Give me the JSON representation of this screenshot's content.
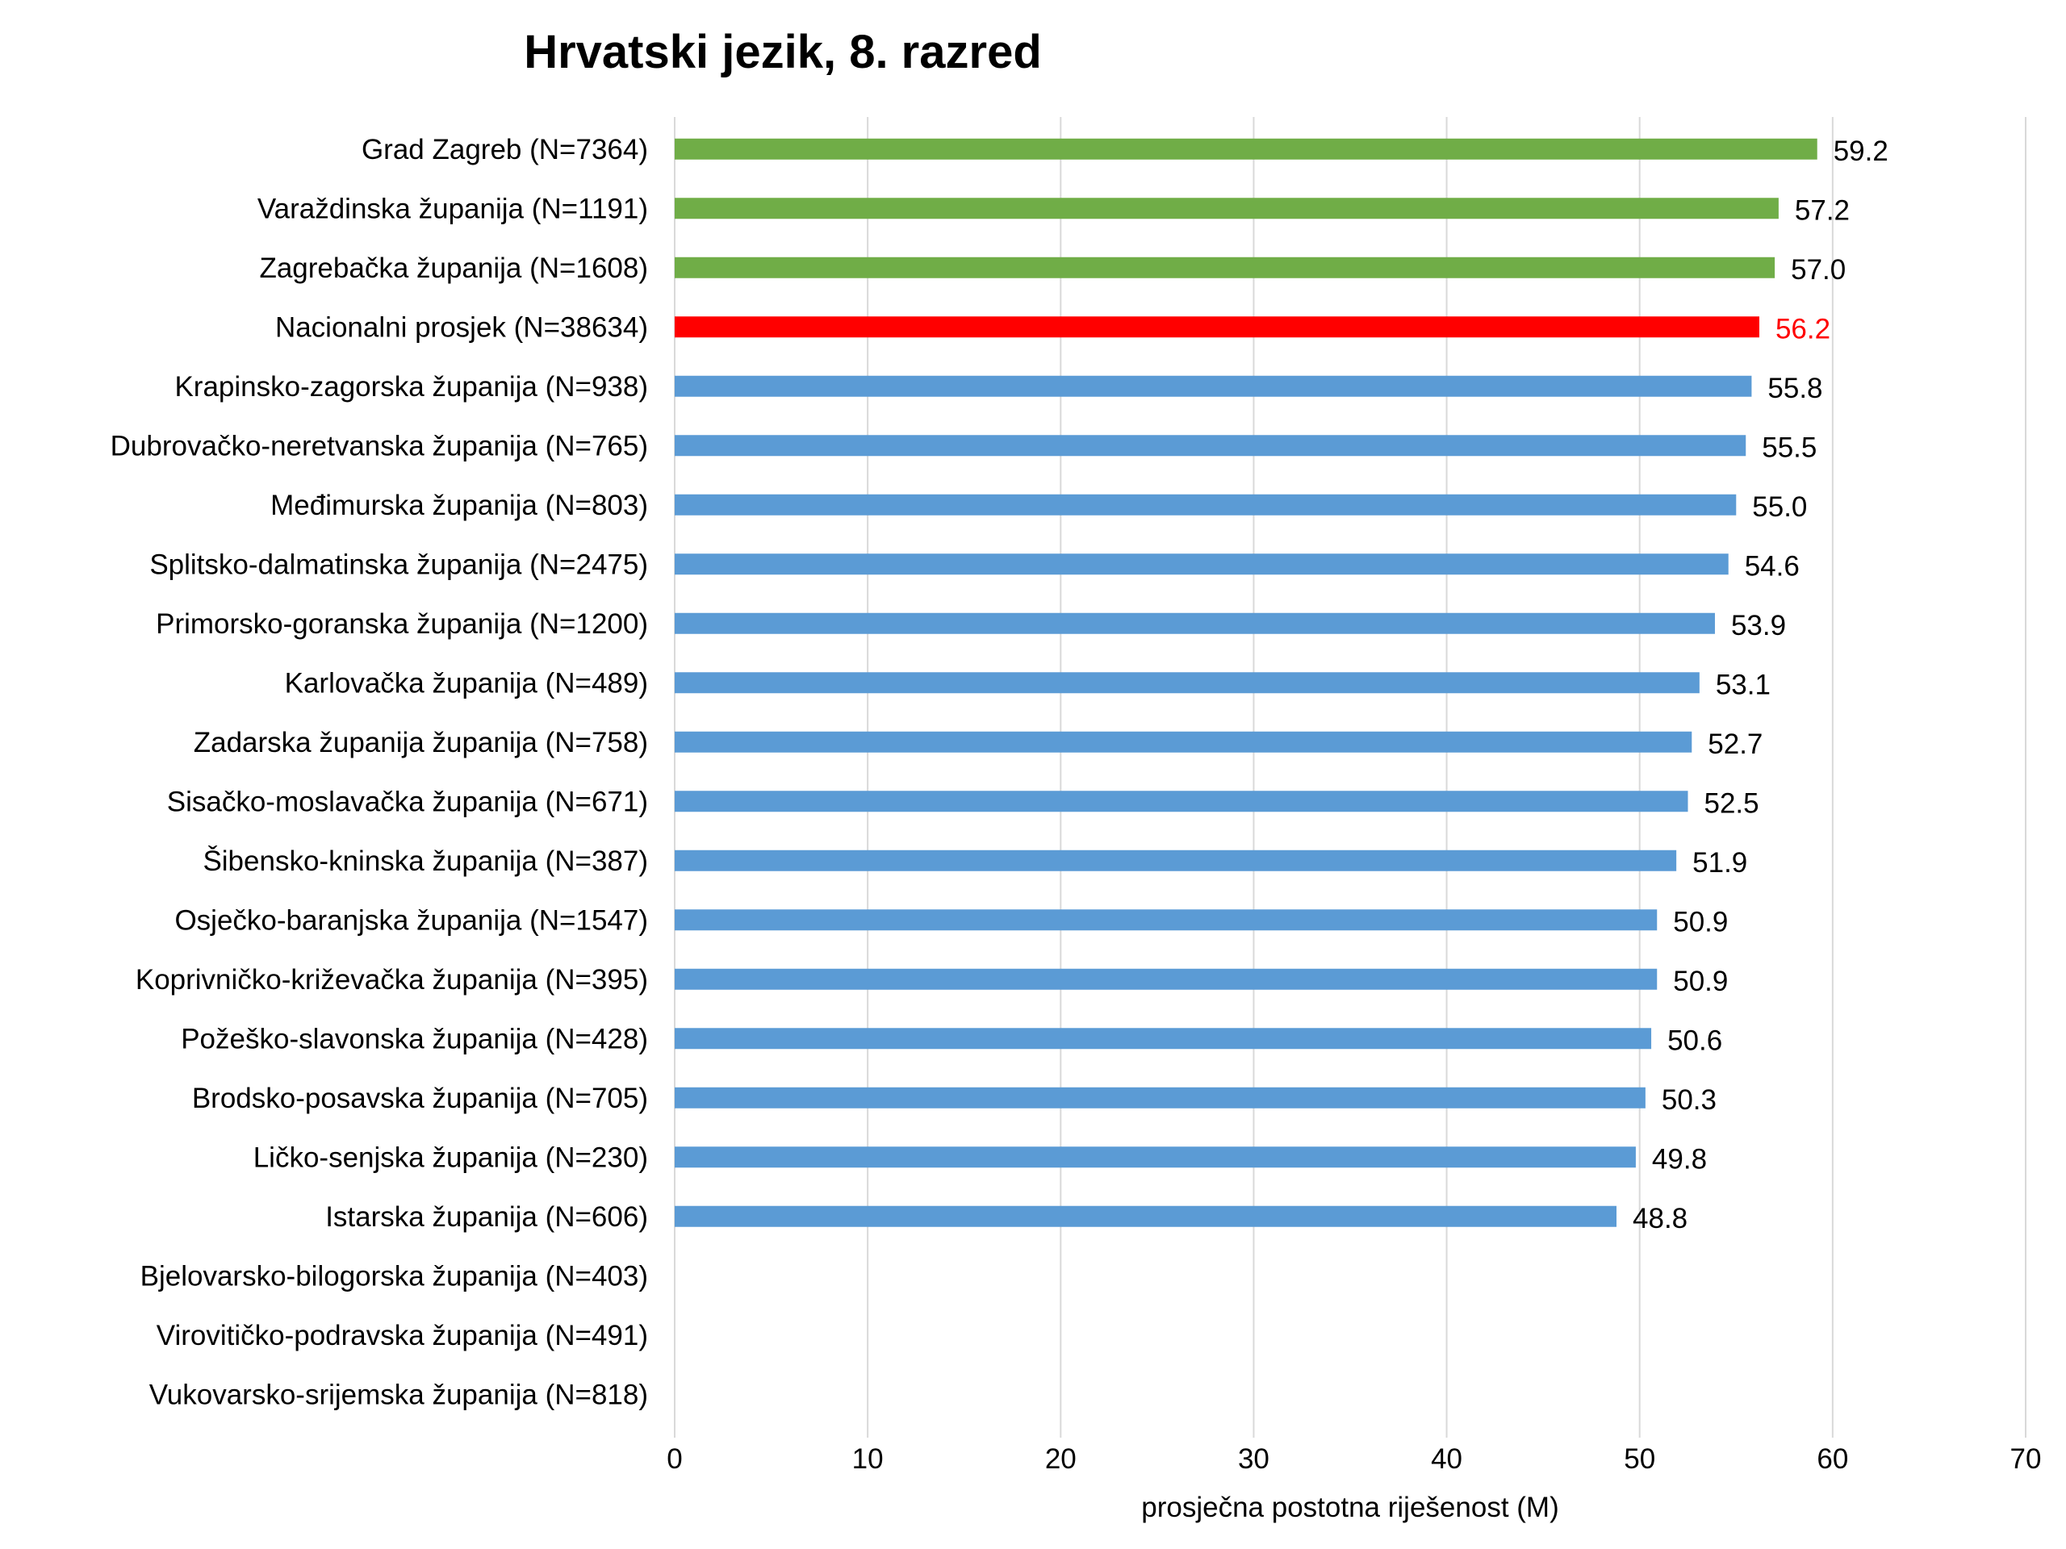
{
  "chart_data": {
    "type": "bar",
    "orientation": "horizontal",
    "title": "Hrvatski jezik, 8. razred",
    "xlabel": "prosječna postotna riješenost (M)",
    "ylabel": "",
    "xlim": [
      0,
      70
    ],
    "xticks": [
      "0",
      "10",
      "20",
      "30",
      "40",
      "50",
      "60",
      "70"
    ],
    "grid": true,
    "legend": "none",
    "categories": [
      "Grad Zagreb (N=7364)",
      "Varaždinska županija (N=1191)",
      "Zagrebačka županija (N=1608)",
      "Nacionalni prosjek (N=38634)",
      "Krapinsko-zagorska županija (N=938)",
      "Dubrovačko-neretvanska županija (N=765)",
      "Međimurska županija (N=803)",
      "Splitsko-dalmatinska županija (N=2475)",
      "Primorsko-goranska županija (N=1200)",
      "Karlovačka županija (N=489)",
      "Zadarska županija županija (N=758)",
      "Sisačko-moslavačka županija (N=671)",
      "Šibensko-kninska županija (N=387)",
      "Osječko-baranjska županija (N=1547)",
      "Koprivničko-križevačka županija (N=395)",
      "Požeško-slavonska županija (N=428)",
      "Brodsko-posavska županija (N=705)",
      "Ličko-senjska županija (N=230)",
      "Istarska županija (N=606)",
      "Bjelovarsko-bilogorska županija (N=403)",
      "Virovitičko-podravska županija (N=491)",
      "Vukovarsko-srijemska županija (N=818)"
    ],
    "values": [
      59.2,
      57.2,
      57.0,
      56.2,
      55.8,
      55.5,
      55.0,
      54.6,
      53.9,
      53.1,
      52.7,
      52.5,
      51.9,
      50.9,
      50.9,
      50.6,
      50.3,
      49.8,
      48.8,
      null,
      null,
      null
    ],
    "value_labels": [
      "59.2",
      "57.2",
      "57.0",
      "56.2",
      "55.8",
      "55.5",
      "55.0",
      "54.6",
      "53.9",
      "53.1",
      "52.7",
      "52.5",
      "51.9",
      "50.9",
      "50.9",
      "50.6",
      "50.3",
      "49.8",
      "48.8",
      "",
      "",
      ""
    ],
    "bar_colors": [
      "#70ad47",
      "#70ad47",
      "#70ad47",
      "#ff0000",
      "#5b9bd5",
      "#5b9bd5",
      "#5b9bd5",
      "#5b9bd5",
      "#5b9bd5",
      "#5b9bd5",
      "#5b9bd5",
      "#5b9bd5",
      "#5b9bd5",
      "#5b9bd5",
      "#5b9bd5",
      "#5b9bd5",
      "#5b9bd5",
      "#5b9bd5",
      "#5b9bd5",
      "#5b9bd5",
      "#5b9bd5",
      "#5b9bd5"
    ],
    "label_colors": [
      "#000000",
      "#000000",
      "#000000",
      "#ff0000",
      "#000000",
      "#000000",
      "#000000",
      "#000000",
      "#000000",
      "#000000",
      "#000000",
      "#000000",
      "#000000",
      "#000000",
      "#000000",
      "#000000",
      "#000000",
      "#000000",
      "#000000",
      "#000000",
      "#000000",
      "#000000"
    ]
  }
}
